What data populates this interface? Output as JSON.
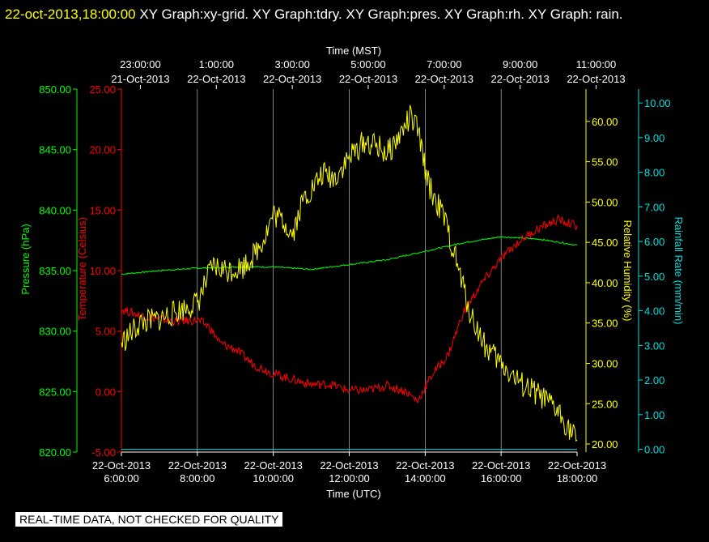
{
  "header": {
    "timestamp": "22-oct-2013,18:00:00",
    "text": " XY Graph:xy-grid.  XY Graph:tdry.  XY Graph:pres.  XY Graph:rh.  XY Graph: rain."
  },
  "notice": "REAL-TIME DATA, NOT CHECKED FOR QUALITY",
  "colors": {
    "pressure": "#00ff00",
    "temperature": "#ff0000",
    "humidity": "#ffff00",
    "rain": "#00e0e0",
    "grid": "#ffffff"
  },
  "chart_data": {
    "type": "line",
    "top_axis": {
      "title": "Time (MST)",
      "ticks": [
        {
          "time": "23:00:00",
          "date": "21-Oct-2013"
        },
        {
          "time": "1:00:00",
          "date": "22-Oct-2013"
        },
        {
          "time": "3:00:00",
          "date": "22-Oct-2013"
        },
        {
          "time": "5:00:00",
          "date": "22-Oct-2013"
        },
        {
          "time": "7:00:00",
          "date": "22-Oct-2013"
        },
        {
          "time": "9:00:00",
          "date": "22-Oct-2013"
        },
        {
          "time": "11:00:00",
          "date": "22-Oct-2013"
        }
      ]
    },
    "bottom_axis": {
      "title": "Time (UTC)",
      "range_hours": [
        6,
        18
      ],
      "ticks": [
        {
          "date": "22-Oct-2013",
          "time": "6:00:00"
        },
        {
          "date": "22-Oct-2013",
          "time": "8:00:00"
        },
        {
          "date": "22-Oct-2013",
          "time": "10:00:00"
        },
        {
          "date": "22-Oct-2013",
          "time": "12:00:00"
        },
        {
          "date": "22-Oct-2013",
          "time": "14:00:00"
        },
        {
          "date": "22-Oct-2013",
          "time": "16:00:00"
        },
        {
          "date": "22-Oct-2013",
          "time": "18:00:00"
        }
      ]
    },
    "axes": {
      "pressure": {
        "label": "Pressure (hPa)",
        "range": [
          820,
          850
        ],
        "ticks": [
          "820.00",
          "825.00",
          "830.00",
          "835.00",
          "840.00",
          "845.00",
          "850.00"
        ]
      },
      "temperature": {
        "label": "Temperature (Celsius)",
        "range": [
          -5,
          25
        ],
        "ticks": [
          "-5.00",
          "0.00",
          "5.00",
          "10.00",
          "15.00",
          "20.00",
          "25.00"
        ]
      },
      "humidity": {
        "label": "Relative Humidity (%)",
        "range": [
          19,
          64
        ],
        "ticks": [
          "20.00",
          "25.00",
          "30.00",
          "35.00",
          "40.00",
          "45.00",
          "50.00",
          "55.00",
          "60.00"
        ]
      },
      "rain": {
        "label": "Rainfall Rate (mm/min)",
        "range": [
          -0.08,
          10.4
        ],
        "ticks": [
          "0.00",
          "1.00",
          "2.00",
          "3.00",
          "4.00",
          "5.00",
          "6.00",
          "7.00",
          "8.00",
          "9.00",
          "10.00"
        ]
      }
    },
    "grid": "vertical",
    "series": [
      {
        "key": "pressure",
        "name": "Pressure",
        "points": [
          [
            6,
            834.7
          ],
          [
            7,
            835.0
          ],
          [
            8,
            835.2
          ],
          [
            9,
            835.3
          ],
          [
            10,
            835.3
          ],
          [
            11,
            835.1
          ],
          [
            12,
            835.5
          ],
          [
            13,
            835.9
          ],
          [
            14,
            836.6
          ],
          [
            15,
            837.3
          ],
          [
            16,
            837.8
          ],
          [
            17,
            837.6
          ],
          [
            18,
            837.1
          ]
        ]
      },
      {
        "key": "temperature",
        "name": "Temperature",
        "points": [
          [
            6,
            6.8
          ],
          [
            6.5,
            6.3
          ],
          [
            7,
            6.0
          ],
          [
            7.5,
            5.8
          ],
          [
            8,
            5.9
          ],
          [
            8.3,
            5.4
          ],
          [
            8.6,
            4.0
          ],
          [
            9,
            3.5
          ],
          [
            9.5,
            2.2
          ],
          [
            10,
            1.5
          ],
          [
            10.5,
            1.0
          ],
          [
            11,
            0.6
          ],
          [
            11.5,
            0.6
          ],
          [
            12,
            0.1
          ],
          [
            12.5,
            0.1
          ],
          [
            13,
            0.5
          ],
          [
            13.5,
            0.0
          ],
          [
            13.8,
            -0.8
          ],
          [
            14.2,
            1.5
          ],
          [
            14.6,
            3.0
          ],
          [
            15,
            6.5
          ],
          [
            15.5,
            9.0
          ],
          [
            16,
            11.0
          ],
          [
            16.5,
            12.5
          ],
          [
            17,
            13.5
          ],
          [
            17.5,
            14.2
          ],
          [
            18,
            13.7
          ]
        ]
      },
      {
        "key": "humidity",
        "name": "Relative Humidity",
        "points": [
          [
            6,
            32.5
          ],
          [
            6.5,
            35.0
          ],
          [
            7,
            35.5
          ],
          [
            7.5,
            36.5
          ],
          [
            8,
            37.5
          ],
          [
            8.4,
            42.0
          ],
          [
            8.8,
            41.5
          ],
          [
            9.2,
            42.0
          ],
          [
            9.5,
            43.5
          ],
          [
            9.8,
            46.0
          ],
          [
            10,
            48.5
          ],
          [
            10.3,
            47.5
          ],
          [
            10.5,
            46.0
          ],
          [
            10.8,
            50.5
          ],
          [
            11,
            51.5
          ],
          [
            11.3,
            53.5
          ],
          [
            11.6,
            53.0
          ],
          [
            12,
            55.5
          ],
          [
            12.4,
            57.5
          ],
          [
            12.7,
            57.0
          ],
          [
            13,
            56.0
          ],
          [
            13.3,
            58.0
          ],
          [
            13.6,
            60.5
          ],
          [
            13.8,
            59.0
          ],
          [
            14.1,
            52.0
          ],
          [
            14.5,
            48.0
          ],
          [
            14.8,
            43.0
          ],
          [
            15.2,
            36.0
          ],
          [
            15.6,
            32.0
          ],
          [
            16,
            30.0
          ],
          [
            16.5,
            27.5
          ],
          [
            17,
            26.0
          ],
          [
            17.5,
            24.0
          ],
          [
            18,
            20.5
          ]
        ]
      },
      {
        "key": "rain",
        "name": "Rainfall Rate",
        "points": [
          [
            6,
            0.0
          ],
          [
            18,
            0.0
          ]
        ]
      }
    ]
  }
}
